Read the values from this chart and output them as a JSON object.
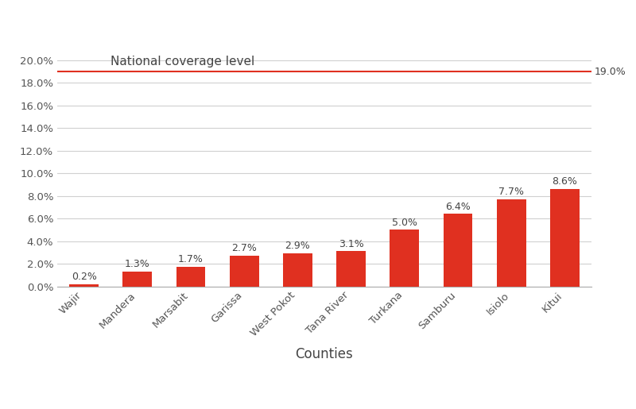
{
  "categories": [
    "Wajir",
    "Mandera",
    "Marsabit",
    "Garissa",
    "West Pokot",
    "Tana River",
    "Turkana",
    "Samburu",
    "Isiolo",
    "Kitui"
  ],
  "values": [
    0.2,
    1.3,
    1.7,
    2.7,
    2.9,
    3.1,
    5.0,
    6.4,
    7.7,
    8.6
  ],
  "bar_color": "#e03020",
  "national_level": 19.0,
  "national_line_color": "#e03020",
  "national_label": "National coverage level",
  "national_value_label": "19.0%",
  "xlabel": "Counties",
  "ylim": [
    0,
    21
  ],
  "yticks": [
    0,
    2,
    4,
    6,
    8,
    10,
    12,
    14,
    16,
    18,
    20
  ],
  "ytick_labels": [
    "0.0%",
    "2.0%",
    "4.0%",
    "6.0%",
    "8.0%",
    "10.0%",
    "12.0%",
    "14.0%",
    "16.0%",
    "18.0%",
    "20.0%"
  ],
  "legend_line_label": "National coverage level",
  "background_color": "#ffffff",
  "grid_color": "#d0d0d0",
  "label_fontsize": 10,
  "tick_fontsize": 9.5,
  "bar_label_fontsize": 9,
  "national_label_fontsize": 11,
  "xlabel_fontsize": 12
}
